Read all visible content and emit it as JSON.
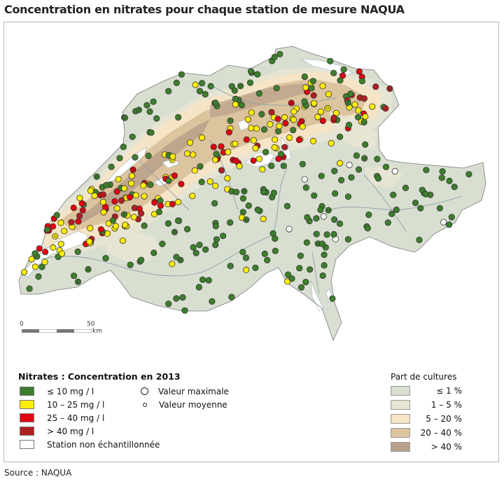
{
  "title": "Concentration en nitrates pour chaque station de mesure NAQUA",
  "source": "Source : NAQUA",
  "colors": {
    "le10": "#3d7e2c",
    "c10_25": "#ffee00",
    "c25_40": "#e3000f",
    "gt40": "#b01f22",
    "not_sampled": "#ffffff",
    "lakes": "#ffffff",
    "rivers": "#8aa0ad",
    "border": "#7a7a7a",
    "cult_le1": "#d8dfd1",
    "cult_1_5": "#e6e4d2",
    "cult_5_20": "#f6e4c6",
    "cult_20_40": "#dcc49f",
    "cult_gt40": "#b9a08a"
  },
  "scale": {
    "start": "0",
    "end": "50",
    "unit": "km"
  },
  "legend_nitrates": {
    "heading": "Nitrates : Concentration en 2013",
    "items": [
      {
        "key": "le10",
        "label": "≤ 10 mg / l"
      },
      {
        "key": "c10_25",
        "label": "10 – 25 mg / l"
      },
      {
        "key": "c25_40",
        "label": "25 – 40 mg / l"
      },
      {
        "key": "gt40",
        "label": "> 40 mg / l"
      },
      {
        "key": "not_sampled",
        "label": "Station non échantillonnée"
      }
    ],
    "symbols": [
      {
        "key": "max",
        "label": "Valeur maximale"
      },
      {
        "key": "mean",
        "label": "Valeur moyenne"
      }
    ]
  },
  "legend_cultures": {
    "heading": "Part de cultures",
    "items": [
      {
        "key": "cult_le1",
        "label": "≤ 1 %"
      },
      {
        "key": "cult_1_5",
        "label": "1 – 5 %"
      },
      {
        "key": "cult_5_20",
        "label": "5 – 20 %"
      },
      {
        "key": "cult_20_40",
        "label": "20 – 40 %"
      },
      {
        "key": "cult_gt40",
        "label": "> 40 %"
      }
    ]
  }
}
